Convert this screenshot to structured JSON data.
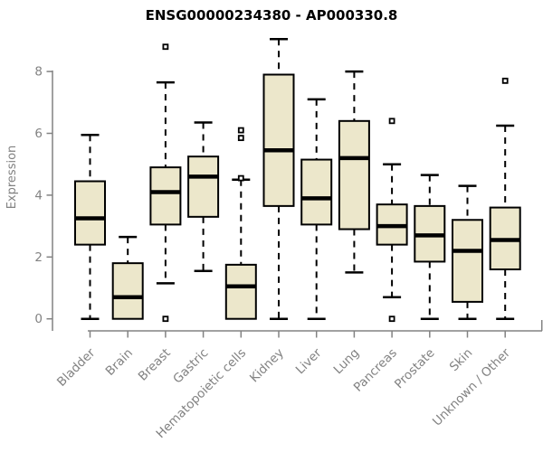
{
  "chart_data": {
    "type": "boxplot",
    "title": "ENSG00000234380 - AP000330.8",
    "xlabel": "",
    "ylabel": "Expression",
    "y_ticks": [
      0,
      2,
      4,
      6,
      8
    ],
    "ylim": [
      -0.4,
      9.4
    ],
    "grid": false,
    "legend": "none",
    "categories": [
      "Bladder",
      "Brain",
      "Breast",
      "Gastric",
      "Hematopoietic cells",
      "Kidney",
      "Liver",
      "Lung",
      "Pancreas",
      "Prostate",
      "Skin",
      "Unknown / Other"
    ],
    "boxes": [
      {
        "category": "Bladder",
        "whisker_low": 0.0,
        "q1": 2.4,
        "median": 3.25,
        "q3": 4.45,
        "whisker_high": 5.95,
        "outliers": []
      },
      {
        "category": "Brain",
        "whisker_low": 0.0,
        "q1": 0.0,
        "median": 0.7,
        "q3": 1.8,
        "whisker_high": 2.65,
        "outliers": []
      },
      {
        "category": "Breast",
        "whisker_low": 1.15,
        "q1": 3.05,
        "median": 4.1,
        "q3": 4.9,
        "whisker_high": 7.65,
        "outliers": [
          8.8,
          0.0
        ]
      },
      {
        "category": "Gastric",
        "whisker_low": 1.55,
        "q1": 3.3,
        "median": 4.6,
        "q3": 5.25,
        "whisker_high": 6.35,
        "outliers": []
      },
      {
        "category": "Hematopoietic cells",
        "whisker_low": 0.0,
        "q1": 0.0,
        "median": 1.05,
        "q3": 1.75,
        "whisker_high": 4.5,
        "outliers": [
          6.1,
          5.85,
          4.55
        ]
      },
      {
        "category": "Kidney",
        "whisker_low": 0.0,
        "q1": 3.65,
        "median": 5.45,
        "q3": 7.9,
        "whisker_high": 9.05,
        "outliers": []
      },
      {
        "category": "Liver",
        "whisker_low": 0.0,
        "q1": 3.05,
        "median": 3.9,
        "q3": 5.15,
        "whisker_high": 7.1,
        "outliers": []
      },
      {
        "category": "Lung",
        "whisker_low": 1.5,
        "q1": 2.9,
        "median": 5.2,
        "q3": 6.4,
        "whisker_high": 8.0,
        "outliers": []
      },
      {
        "category": "Pancreas",
        "whisker_low": 0.7,
        "q1": 2.4,
        "median": 3.0,
        "q3": 3.7,
        "whisker_high": 5.0,
        "outliers": [
          6.4,
          0.0
        ]
      },
      {
        "category": "Prostate",
        "whisker_low": 0.0,
        "q1": 1.85,
        "median": 2.7,
        "q3": 3.65,
        "whisker_high": 4.65,
        "outliers": []
      },
      {
        "category": "Skin",
        "whisker_low": 0.0,
        "q1": 0.55,
        "median": 2.2,
        "q3": 3.2,
        "whisker_high": 4.3,
        "outliers": []
      },
      {
        "category": "Unknown / Other",
        "whisker_low": 0.0,
        "q1": 1.6,
        "median": 2.55,
        "q3": 3.6,
        "whisker_high": 6.25,
        "outliers": [
          7.7
        ]
      }
    ],
    "colors": {
      "box_fill": "#ece7cb",
      "box_stroke": "#000000",
      "median": "#000000",
      "whisker": "#000000",
      "axis": "#828282",
      "tick_label": "#828282",
      "title": "#000000",
      "background": "#ffffff"
    }
  }
}
